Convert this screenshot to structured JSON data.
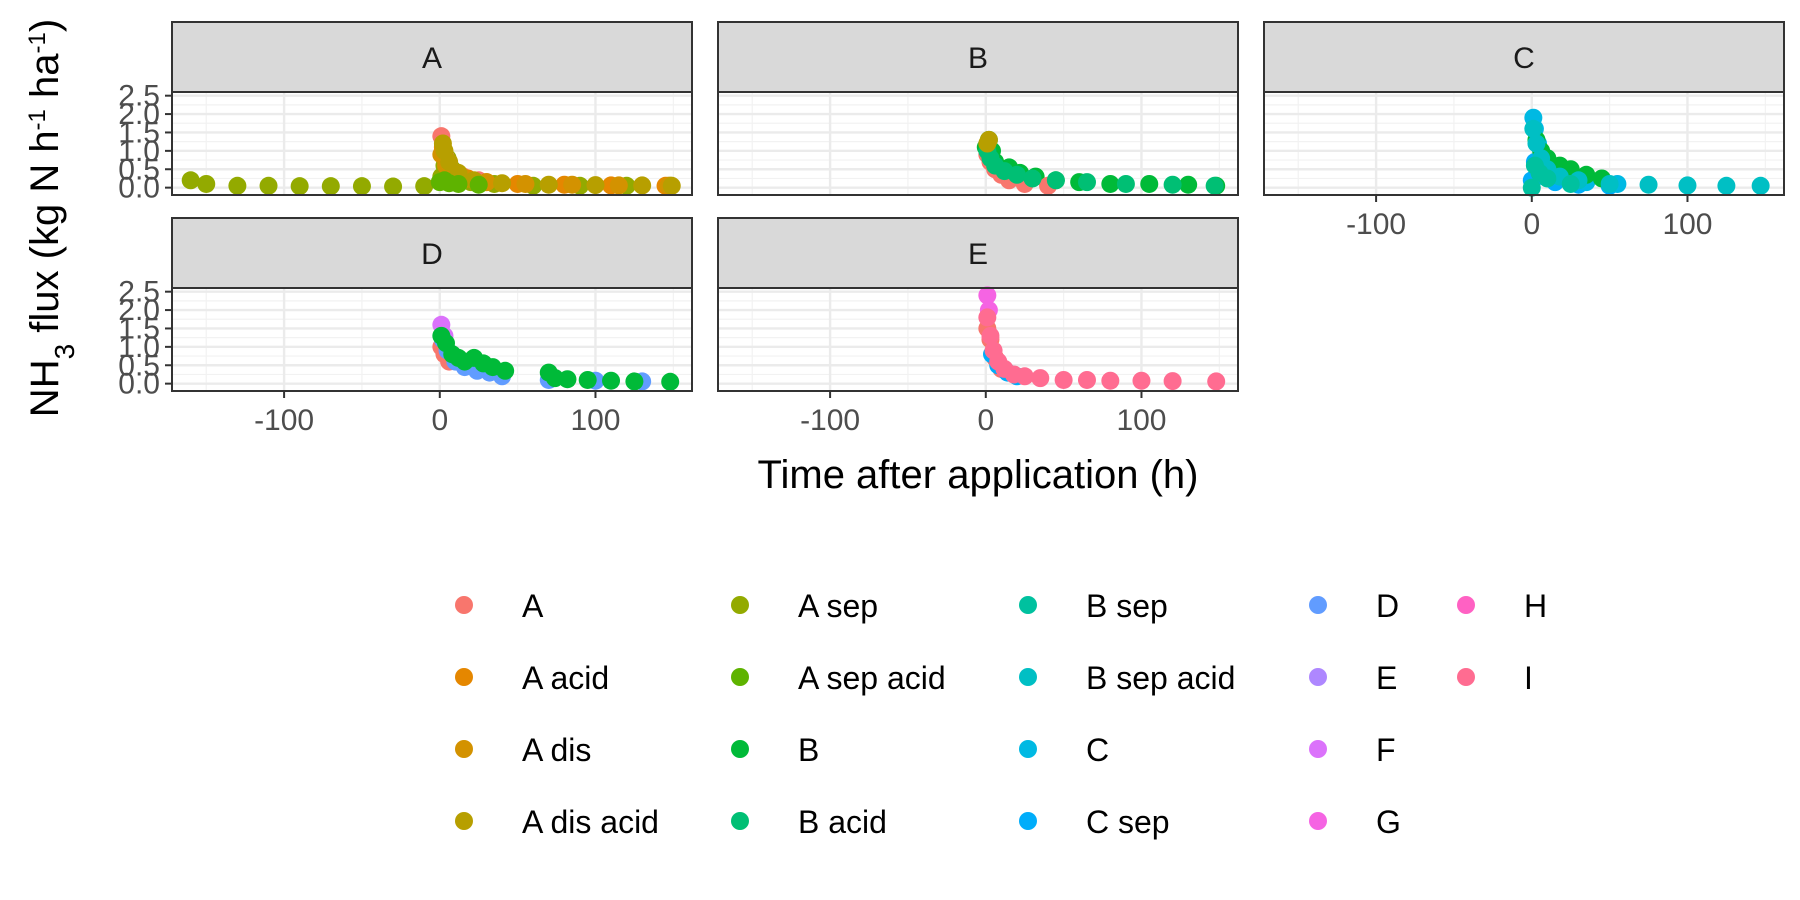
{
  "chart_data": {
    "type": "scatter",
    "xlabel": "Time after application (h)",
    "ylabel": {
      "main": "NH",
      "sub": "3",
      "rest1": " flux (kg N h",
      "sup1": "-1",
      "rest2": " ha",
      "sup2": "-1",
      "close": ")"
    },
    "xlim": [
      -172,
      162
    ],
    "ylim": [
      -0.2,
      2.6
    ],
    "x_ticks": [
      -100,
      0,
      100
    ],
    "x_tick_labels": [
      "-100",
      "0",
      "100"
    ],
    "y_ticks": [
      0.0,
      0.5,
      1.0,
      1.5,
      2.0,
      2.5
    ],
    "y_tick_labels": [
      "0.0",
      "0.5",
      "1.0",
      "1.5",
      "2.0",
      "2.5"
    ],
    "grid": true,
    "legend": {
      "position": "bottom",
      "entries": [
        {
          "name": "A",
          "color": "#F8766D"
        },
        {
          "name": "A acid",
          "color": "#E58700"
        },
        {
          "name": "A dis",
          "color": "#D39200"
        },
        {
          "name": "A dis acid",
          "color": "#B79F00"
        },
        {
          "name": "A sep",
          "color": "#93AA00"
        },
        {
          "name": "A sep acid",
          "color": "#5EB300"
        },
        {
          "name": "B",
          "color": "#00BA38"
        },
        {
          "name": "B acid",
          "color": "#00BF74"
        },
        {
          "name": "B sep",
          "color": "#00C19F"
        },
        {
          "name": "B sep acid",
          "color": "#00BFC4"
        },
        {
          "name": "C",
          "color": "#00B9E3"
        },
        {
          "name": "C sep",
          "color": "#00ADFA"
        },
        {
          "name": "D",
          "color": "#619CFF"
        },
        {
          "name": "E",
          "color": "#AE87FF"
        },
        {
          "name": "F",
          "color": "#DB72FB"
        },
        {
          "name": "G",
          "color": "#F564E3"
        },
        {
          "name": "H",
          "color": "#FF61C3"
        },
        {
          "name": "I",
          "color": "#FF6C91"
        }
      ]
    },
    "panels": [
      {
        "strip": "A",
        "series": [
          {
            "name": "A sep",
            "points": [
              [
                -160,
                0.2
              ],
              [
                -150,
                0.1
              ],
              [
                -130,
                0.05
              ],
              [
                -110,
                0.05
              ],
              [
                -90,
                0.04
              ],
              [
                -70,
                0.04
              ],
              [
                -50,
                0.04
              ],
              [
                -30,
                0.03
              ],
              [
                -10,
                0.04
              ],
              [
                1,
                0.3
              ],
              [
                3,
                0.6
              ],
              [
                5,
                0.8
              ],
              [
                8,
                0.5
              ],
              [
                12,
                0.3
              ],
              [
                20,
                0.15
              ],
              [
                35,
                0.1
              ],
              [
                60,
                0.05
              ],
              [
                90,
                0.05
              ],
              [
                120,
                0.05
              ],
              [
                148,
                0.05
              ]
            ]
          },
          {
            "name": "A",
            "points": [
              [
                1,
                1.4
              ],
              [
                2,
                1.0
              ],
              [
                4,
                0.8
              ],
              [
                6,
                0.6
              ],
              [
                10,
                0.4
              ],
              [
                15,
                0.3
              ],
              [
                25,
                0.2
              ]
            ]
          },
          {
            "name": "A acid",
            "points": [
              [
                2,
                1.1
              ],
              [
                5,
                0.7
              ],
              [
                10,
                0.4
              ],
              [
                18,
                0.25
              ],
              [
                30,
                0.15
              ],
              [
                50,
                0.1
              ],
              [
                80,
                0.08
              ],
              [
                110,
                0.06
              ],
              [
                145,
                0.05
              ]
            ]
          },
          {
            "name": "A dis",
            "points": [
              [
                1,
                0.9
              ],
              [
                4,
                0.6
              ],
              [
                9,
                0.35
              ],
              [
                16,
                0.25
              ],
              [
                30,
                0.15
              ],
              [
                55,
                0.1
              ],
              [
                85,
                0.08
              ],
              [
                115,
                0.06
              ],
              [
                147,
                0.05
              ]
            ]
          },
          {
            "name": "A dis acid",
            "points": [
              [
                2,
                1.2
              ],
              [
                3,
                1.0
              ],
              [
                6,
                0.7
              ],
              [
                12,
                0.4
              ],
              [
                22,
                0.2
              ],
              [
                40,
                0.12
              ],
              [
                70,
                0.08
              ],
              [
                100,
                0.07
              ],
              [
                130,
                0.06
              ],
              [
                149,
                0.05
              ]
            ]
          },
          {
            "name": "A sep acid",
            "points": [
              [
                0,
                0.15
              ],
              [
                3,
                0.2
              ],
              [
                6,
                0.12
              ],
              [
                12,
                0.1
              ],
              [
                25,
                0.08
              ]
            ]
          }
        ]
      },
      {
        "strip": "B",
        "series": [
          {
            "name": "B",
            "points": [
              [
                0,
                1.1
              ],
              [
                2,
                1.3
              ],
              [
                4,
                1.0
              ],
              [
                6,
                0.7
              ],
              [
                10,
                0.5
              ],
              [
                15,
                0.55
              ],
              [
                22,
                0.4
              ],
              [
                32,
                0.3
              ],
              [
                45,
                0.2
              ],
              [
                60,
                0.15
              ],
              [
                80,
                0.1
              ],
              [
                105,
                0.1
              ],
              [
                130,
                0.08
              ],
              [
                148,
                0.05
              ]
            ]
          },
          {
            "name": "A",
            "points": [
              [
                1,
                0.9
              ],
              [
                3,
                0.7
              ],
              [
                6,
                0.5
              ],
              [
                10,
                0.35
              ],
              [
                15,
                0.2
              ],
              [
                25,
                0.1
              ],
              [
                40,
                0.05
              ]
            ]
          },
          {
            "name": "B acid",
            "points": [
              [
                1,
                1.0
              ],
              [
                3,
                0.8
              ],
              [
                6,
                0.6
              ],
              [
                12,
                0.45
              ],
              [
                20,
                0.35
              ],
              [
                30,
                0.25
              ],
              [
                45,
                0.2
              ],
              [
                65,
                0.15
              ],
              [
                90,
                0.1
              ],
              [
                120,
                0.08
              ],
              [
                147,
                0.05
              ]
            ]
          },
          {
            "name": "A dis acid",
            "points": [
              [
                1,
                1.2
              ],
              [
                2,
                1.3
              ]
            ]
          }
        ]
      },
      {
        "strip": "C",
        "series": [
          {
            "name": "C sep",
            "points": [
              [
                0,
                0.2
              ],
              [
                2,
                0.7
              ],
              [
                4,
                0.5
              ],
              [
                8,
                0.3
              ],
              [
                15,
                0.15
              ],
              [
                30,
                0.08
              ],
              [
                50,
                0.05
              ]
            ]
          },
          {
            "name": "C",
            "points": [
              [
                1,
                1.9
              ],
              [
                2,
                1.6
              ],
              [
                4,
                1.2
              ],
              [
                7,
                0.8
              ],
              [
                12,
                0.5
              ],
              [
                20,
                0.3
              ],
              [
                35,
                0.15
              ],
              [
                55,
                0.1
              ]
            ]
          },
          {
            "name": "B",
            "points": [
              [
                3,
                1.3
              ],
              [
                6,
                1.0
              ],
              [
                10,
                0.8
              ],
              [
                18,
                0.6
              ],
              [
                25,
                0.5
              ],
              [
                35,
                0.35
              ],
              [
                45,
                0.25
              ]
            ]
          },
          {
            "name": "B sep acid",
            "points": [
              [
                1,
                1.6
              ],
              [
                3,
                1.2
              ],
              [
                6,
                0.8
              ],
              [
                10,
                0.5
              ],
              [
                18,
                0.3
              ],
              [
                30,
                0.2
              ],
              [
                50,
                0.1
              ],
              [
                75,
                0.08
              ],
              [
                100,
                0.06
              ],
              [
                125,
                0.05
              ],
              [
                147,
                0.05
              ]
            ]
          },
          {
            "name": "B sep",
            "points": [
              [
                0,
                0.0
              ],
              [
                2,
                0.6
              ],
              [
                5,
                0.4
              ],
              [
                10,
                0.25
              ],
              [
                25,
                0.1
              ]
            ]
          }
        ]
      },
      {
        "strip": "D",
        "series": [
          {
            "name": "F",
            "points": [
              [
                1,
                1.6
              ],
              [
                3,
                1.3
              ]
            ]
          },
          {
            "name": "A",
            "points": [
              [
                1,
                1.0
              ],
              [
                3,
                0.8
              ],
              [
                6,
                0.6
              ]
            ]
          },
          {
            "name": "D",
            "points": [
              [
                2,
                1.2
              ],
              [
                5,
                0.9
              ],
              [
                10,
                0.6
              ],
              [
                16,
                0.45
              ],
              [
                24,
                0.35
              ],
              [
                32,
                0.3
              ],
              [
                40,
                0.2
              ],
              [
                70,
                0.1
              ],
              [
                100,
                0.08
              ],
              [
                130,
                0.06
              ]
            ]
          },
          {
            "name": "B",
            "points": [
              [
                1,
                1.3
              ],
              [
                4,
                1.1
              ],
              [
                8,
                0.8
              ],
              [
                12,
                0.7
              ],
              [
                16,
                0.6
              ],
              [
                22,
                0.7
              ],
              [
                28,
                0.55
              ],
              [
                34,
                0.45
              ],
              [
                42,
                0.35
              ],
              [
                70,
                0.3
              ],
              [
                74,
                0.15
              ],
              [
                82,
                0.12
              ],
              [
                95,
                0.1
              ],
              [
                110,
                0.08
              ],
              [
                125,
                0.06
              ],
              [
                148,
                0.05
              ]
            ]
          }
        ]
      },
      {
        "strip": "E",
        "series": [
          {
            "name": "G",
            "points": [
              [
                1,
                2.4
              ],
              [
                2,
                2.0
              ]
            ]
          },
          {
            "name": "A",
            "points": [
              [
                1,
                1.5
              ],
              [
                3,
                1.2
              ],
              [
                6,
                0.7
              ],
              [
                10,
                0.4
              ]
            ]
          },
          {
            "name": "C sep",
            "points": [
              [
                4,
                0.8
              ],
              [
                8,
                0.5
              ],
              [
                14,
                0.3
              ],
              [
                20,
                0.2
              ]
            ]
          },
          {
            "name": "I",
            "points": [
              [
                1,
                1.8
              ],
              [
                3,
                1.3
              ],
              [
                5,
                0.9
              ],
              [
                8,
                0.6
              ],
              [
                12,
                0.4
              ],
              [
                18,
                0.25
              ],
              [
                25,
                0.2
              ],
              [
                35,
                0.15
              ],
              [
                50,
                0.1
              ],
              [
                65,
                0.1
              ],
              [
                80,
                0.08
              ],
              [
                100,
                0.08
              ],
              [
                120,
                0.07
              ],
              [
                148,
                0.06
              ]
            ]
          }
        ]
      }
    ]
  }
}
